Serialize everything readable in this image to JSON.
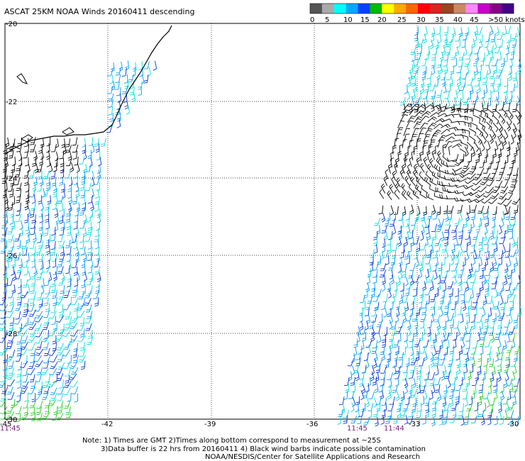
{
  "title": "ASCAT 25KM NOAA Winds 20160411 descending",
  "legend": {
    "swatches": [
      "#555555",
      "#aaaaaa",
      "#00ffff",
      "#00aaff",
      "#0044ff",
      "#00bb00",
      "#ffff00",
      "#ffaa00",
      "#ff6600",
      "#ff0000",
      "#dd2222",
      "#994422",
      "#cc8866",
      "#ff88ff",
      "#cc00cc",
      "#880088",
      "#440088"
    ],
    "labels": [
      "0",
      "5",
      "10",
      "15",
      "20",
      "25",
      "30",
      "35",
      "40",
      "45",
      ">50 knots"
    ],
    "unit": "knots"
  },
  "axes": {
    "lat_labels": [
      "-20",
      "-22",
      "-24",
      "-26",
      "-28",
      "-30"
    ],
    "lon_labels": [
      "-45",
      "-42",
      "-39",
      "-36",
      "-33",
      "-30"
    ]
  },
  "swath_times": [
    "11:45",
    "11:45",
    "11:44"
  ],
  "notes": [
    "Note: 1) Times are GMT 2)Times along bottom correspond to measurement at ~25S",
    "3)Data buffer is 22 hrs from 20160411 4) Black wind barbs indicate possible contamination",
    "NOAA/NESDIS/Center for Satellite Applications and Research"
  ],
  "colors": {
    "barb_black": "#000000",
    "barb_cyan": "#00dddd",
    "barb_lightblue": "#0099ff",
    "barb_blue": "#0033dd",
    "barb_green": "#22cc22"
  }
}
